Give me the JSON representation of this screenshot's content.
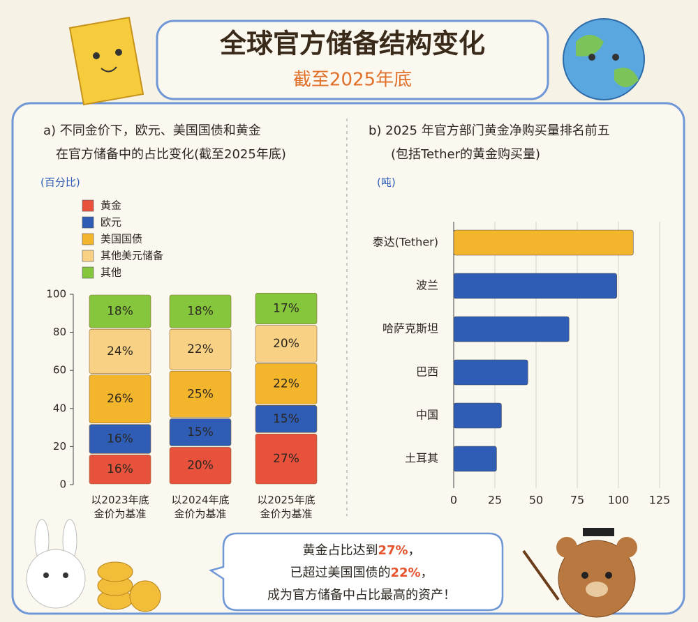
{
  "title": "全球官方储备结构变化",
  "subtitle": "截至2025年底",
  "chart_data": [
    {
      "type": "stacked-bar",
      "title": "a) 不同金价下，欧元、美国国债和黄金\n在官方储备中的占比变化(截至2025年底)",
      "y_label": "(百分比)",
      "categories": [
        "以2023年底\n金价为基准",
        "以2024年底\n金价为基准",
        "以2025年底\n金价为基准"
      ],
      "series": [
        {
          "name": "黄金",
          "color": "#e8523d",
          "values": [
            16,
            20,
            27
          ],
          "value_labels": [
            "16%",
            "20%",
            "27%"
          ]
        },
        {
          "name": "欧元",
          "color": "#2f5db5",
          "values": [
            16,
            15,
            15
          ],
          "value_labels": [
            "16%",
            "15%",
            "15%"
          ]
        },
        {
          "name": "美国国债",
          "color": "#f3b52b",
          "values": [
            26,
            25,
            22
          ],
          "value_labels": [
            "26%",
            "25%",
            "22%"
          ]
        },
        {
          "name": "其他美元储备",
          "color": "#f8d184",
          "values": [
            24,
            22,
            20
          ],
          "value_labels": [
            "24%",
            "22%",
            "20%"
          ]
        },
        {
          "name": "其他",
          "color": "#86c63c",
          "values": [
            18,
            18,
            17
          ],
          "value_labels": [
            "18%",
            "18%",
            "17%"
          ]
        }
      ],
      "ylim": [
        0,
        100
      ],
      "yticks": [
        0,
        20,
        40,
        60,
        80,
        100
      ]
    },
    {
      "type": "hbar",
      "title": "b) 2025 年官方部门黄金净购买量排名前五\n(包括Tether的黄金购买量)",
      "x_label": "(吨)",
      "categories": [
        "泰达(Tether)",
        "波兰",
        "哈萨克斯坦",
        "巴西",
        "中国",
        "土耳其"
      ],
      "values": [
        109,
        99,
        70,
        45,
        29,
        26
      ],
      "colors": [
        "#f3b52b",
        "#2f5db5",
        "#2f5db5",
        "#2f5db5",
        "#2f5db5",
        "#2f5db5"
      ],
      "xlim": [
        0,
        125
      ],
      "xticks": [
        0,
        25,
        50,
        75,
        100,
        125
      ],
      "grid": true
    }
  ],
  "callout": [
    {
      "before": "黄金占比达到",
      "highlight": "27%",
      "after": "，"
    },
    {
      "before": "已超过美国国债的",
      "highlight": "22%",
      "after": "，"
    },
    {
      "before": "成为官方储备中占比最高的资产！"
    }
  ]
}
